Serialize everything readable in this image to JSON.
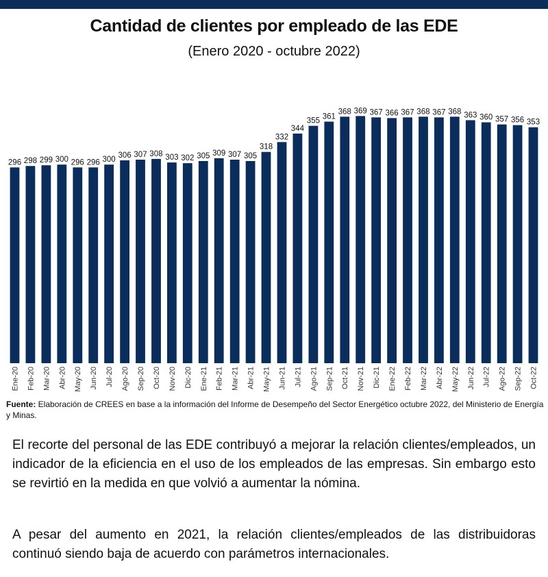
{
  "header": {
    "title": "Cantidad de clientes por empleado de las EDE",
    "subtitle": "(Enero 2020 - octubre 2022)"
  },
  "chart_data": {
    "type": "bar",
    "title": "Cantidad de clientes por empleado de las EDE",
    "subtitle": "(Enero 2020 - octubre 2022)",
    "xlabel": "",
    "ylabel": "",
    "grid": false,
    "legend": "none",
    "ylim": [
      18,
      378
    ],
    "color": "#0b2d5b",
    "categories": [
      "Ene-20",
      "Feb-20",
      "Mar-20",
      "Abr-20",
      "May-20",
      "Jun-20",
      "Jul-20",
      "Ago-20",
      "Sep-20",
      "Oct-20",
      "Nov-20",
      "Dic-20",
      "Ene-21",
      "Feb-21",
      "Mar-21",
      "Abr-21",
      "May-21",
      "Jun-21",
      "Jul-21",
      "Ago-21",
      "Sep-21",
      "Oct-21",
      "Nov-21",
      "Dic-21",
      "Ene-22",
      "Feb-22",
      "Mar-22",
      "Abr-22",
      "May-22",
      "Jun-22",
      "Jul-22",
      "Ago-22",
      "Sep-22",
      "Oct-22"
    ],
    "values": [
      296,
      298,
      299,
      300,
      296,
      296,
      300,
      306,
      307,
      308,
      303,
      302,
      305,
      309,
      307,
      305,
      318,
      332,
      344,
      355,
      361,
      368,
      369,
      367,
      366,
      367,
      368,
      367,
      368,
      363,
      360,
      357,
      356,
      353
    ]
  },
  "source": {
    "label": "Fuente:",
    "text": " Elaboración de CREES en base a la información del Informe de Desempeño del Sector Energético octubre 2022, del Ministerio de Energía y Minas."
  },
  "body": {
    "paragraph1": "El recorte del personal de las EDE contribuyó a mejorar la relación clientes/empleados, un indicador de la eficiencia en el uso de los empleados de las empresas. Sin embargo esto se revirtió en la medida en que volvió a aumentar la nómina.",
    "paragraph2": "A pesar del aumento en 2021, la relación clientes/empleados de las distribuidoras continuó  siendo baja de acuerdo con parámetros internacionales."
  }
}
